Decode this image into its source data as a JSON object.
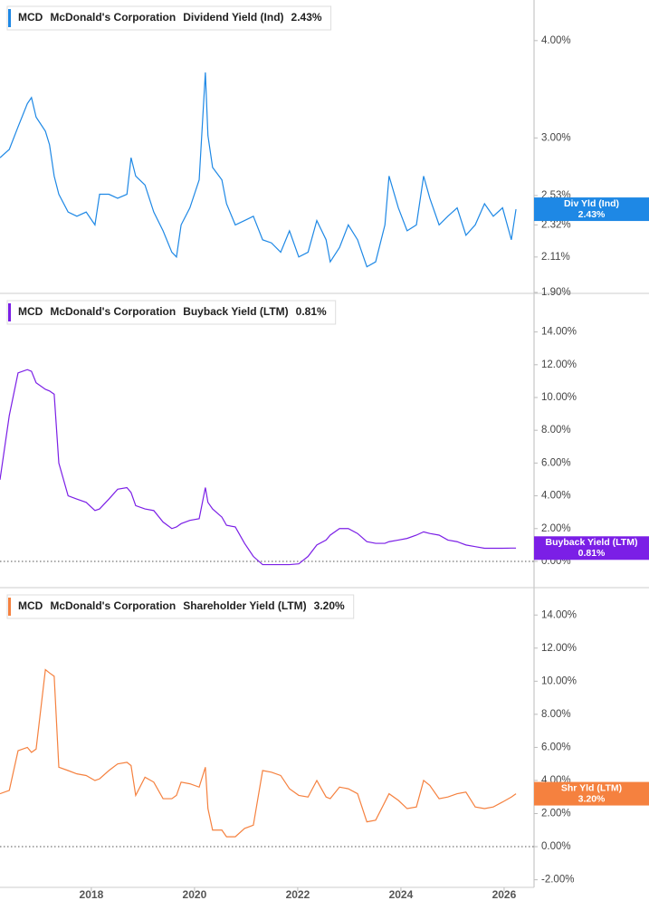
{
  "chart_data": [
    {
      "type": "line",
      "header": {
        "ticker": "MCD",
        "company": "McDonald's Corporation",
        "metric": "Dividend Yield (Ind)",
        "value_label": "2.43%"
      },
      "x": [
        2016.23,
        2016.41,
        2016.58,
        2016.76,
        2016.84,
        2016.93,
        2017.11,
        2017.19,
        2017.28,
        2017.37,
        2017.55,
        2017.72,
        2017.9,
        2018.07,
        2018.16,
        2018.34,
        2018.51,
        2018.69,
        2018.77,
        2018.86,
        2019.04,
        2019.21,
        2019.39,
        2019.56,
        2019.65,
        2019.74,
        2019.91,
        2020.09,
        2020.21,
        2020.26,
        2020.35,
        2020.53,
        2020.62,
        2020.79,
        2020.97,
        2021.14,
        2021.32,
        2021.49,
        2021.67,
        2021.84,
        2022.02,
        2022.2,
        2022.37,
        2022.55,
        2022.63,
        2022.81,
        2022.98,
        2023.16,
        2023.34,
        2023.51,
        2023.69,
        2023.77,
        2023.95,
        2024.12,
        2024.3,
        2024.44,
        2024.56,
        2024.74,
        2024.91,
        2025.09,
        2025.26,
        2025.44,
        2025.62,
        2025.79,
        2025.97,
        2026.14,
        2026.23
      ],
      "series": [
        {
          "name": "Div Yld (Ind)",
          "color": "#1e88e5",
          "values": [
            2.83,
            2.9,
            3.1,
            3.32,
            3.38,
            3.19,
            3.06,
            2.94,
            2.68,
            2.54,
            2.41,
            2.38,
            2.41,
            2.32,
            2.54,
            2.54,
            2.51,
            2.54,
            2.83,
            2.68,
            2.61,
            2.41,
            2.28,
            2.14,
            2.11,
            2.32,
            2.44,
            2.65,
            3.64,
            3.02,
            2.75,
            2.65,
            2.47,
            2.32,
            2.35,
            2.38,
            2.22,
            2.2,
            2.14,
            2.28,
            2.11,
            2.14,
            2.35,
            2.22,
            2.08,
            2.17,
            2.32,
            2.22,
            2.05,
            2.08,
            2.32,
            2.68,
            2.44,
            2.28,
            2.32,
            2.68,
            2.51,
            2.32,
            2.38,
            2.44,
            2.25,
            2.32,
            2.47,
            2.38,
            2.44,
            2.22,
            2.43
          ]
        }
      ],
      "xlim": [
        2016.23,
        2026.58
      ],
      "ylim": [
        1.9,
        4.51
      ],
      "log_scale": true,
      "yticks": [
        {
          "value": 1.9,
          "label": "1.90%"
        },
        {
          "value": 2.11,
          "label": "2.11%"
        },
        {
          "value": 2.32,
          "label": "2.32%"
        },
        {
          "value": 2.53,
          "label": "2.53%"
        },
        {
          "value": 3,
          "label": "3.00%"
        },
        {
          "value": 4,
          "label": "4.00%"
        }
      ]
    },
    {
      "type": "line",
      "header": {
        "ticker": "MCD",
        "company": "McDonald's Corporation",
        "metric": "Buyback Yield (LTM)",
        "value_label": "0.81%"
      },
      "x": [
        2016.23,
        2016.41,
        2016.58,
        2016.76,
        2016.84,
        2016.93,
        2017.11,
        2017.19,
        2017.28,
        2017.37,
        2017.55,
        2017.72,
        2017.9,
        2018.07,
        2018.16,
        2018.34,
        2018.51,
        2018.69,
        2018.77,
        2018.86,
        2019.04,
        2019.21,
        2019.39,
        2019.56,
        2019.65,
        2019.74,
        2019.91,
        2020.09,
        2020.21,
        2020.26,
        2020.35,
        2020.53,
        2020.62,
        2020.79,
        2020.97,
        2021.14,
        2021.32,
        2021.49,
        2021.67,
        2021.84,
        2022.02,
        2022.2,
        2022.37,
        2022.55,
        2022.63,
        2022.81,
        2022.98,
        2023.16,
        2023.34,
        2023.51,
        2023.69,
        2023.77,
        2023.95,
        2024.12,
        2024.3,
        2024.44,
        2024.56,
        2024.74,
        2024.91,
        2025.09,
        2025.26,
        2025.44,
        2025.62,
        2025.79,
        2025.97,
        2026.14,
        2026.23
      ],
      "series": [
        {
          "name": "Buyback Yield (LTM)",
          "color": "#7b1fe6",
          "values": [
            4.98,
            8.9,
            11.5,
            11.7,
            11.6,
            10.9,
            10.5,
            10.4,
            10.2,
            6.0,
            4.0,
            3.8,
            3.6,
            3.1,
            3.2,
            3.8,
            4.4,
            4.5,
            4.2,
            3.4,
            3.2,
            3.1,
            2.4,
            2.0,
            2.1,
            2.3,
            2.5,
            2.6,
            4.5,
            3.6,
            3.2,
            2.7,
            2.2,
            2.1,
            1.1,
            0.3,
            -0.2,
            -0.2,
            -0.2,
            -0.2,
            -0.15,
            0.3,
            1.0,
            1.3,
            1.6,
            2.0,
            2.0,
            1.7,
            1.2,
            1.1,
            1.1,
            1.2,
            1.3,
            1.4,
            1.6,
            1.8,
            1.7,
            1.6,
            1.3,
            1.2,
            1.0,
            0.9,
            0.8,
            0.8,
            0.8,
            0.81,
            0.81
          ]
        }
      ],
      "xlim": [
        2016.23,
        2026.58
      ],
      "ylim": [
        -1.55,
        16.3
      ],
      "zero_line": true,
      "yticks": [
        {
          "value": 0,
          "label": "0.00%"
        },
        {
          "value": 2,
          "label": "2.00%"
        },
        {
          "value": 4,
          "label": "4.00%"
        },
        {
          "value": 6,
          "label": "6.00%"
        },
        {
          "value": 8,
          "label": "8.00%"
        },
        {
          "value": 10,
          "label": "10.00%"
        },
        {
          "value": 12,
          "label": "12.00%"
        },
        {
          "value": 14,
          "label": "14.00%"
        }
      ]
    },
    {
      "type": "line",
      "header": {
        "ticker": "MCD",
        "company": "McDonald's Corporation",
        "metric": "Shareholder Yield (LTM)",
        "value_label": "3.20%"
      },
      "x": [
        2016.23,
        2016.41,
        2016.58,
        2016.76,
        2016.84,
        2016.93,
        2017.11,
        2017.19,
        2017.28,
        2017.37,
        2017.55,
        2017.72,
        2017.9,
        2018.07,
        2018.16,
        2018.34,
        2018.51,
        2018.69,
        2018.77,
        2018.86,
        2019.04,
        2019.21,
        2019.39,
        2019.56,
        2019.65,
        2019.74,
        2019.91,
        2020.09,
        2020.21,
        2020.26,
        2020.35,
        2020.53,
        2020.62,
        2020.79,
        2020.97,
        2021.14,
        2021.32,
        2021.49,
        2021.67,
        2021.84,
        2022.02,
        2022.2,
        2022.37,
        2022.55,
        2022.63,
        2022.81,
        2022.98,
        2023.16,
        2023.34,
        2023.51,
        2023.69,
        2023.77,
        2023.95,
        2024.12,
        2024.3,
        2024.44,
        2024.56,
        2024.74,
        2024.91,
        2025.09,
        2025.26,
        2025.44,
        2025.62,
        2025.79,
        2025.97,
        2026.14,
        2026.23
      ],
      "series": [
        {
          "name": "Shr Yld (LTM)",
          "color": "#f5813f",
          "values": [
            3.2,
            3.4,
            5.8,
            6.0,
            5.7,
            5.9,
            10.7,
            10.5,
            10.3,
            4.8,
            4.6,
            4.4,
            4.3,
            4.0,
            4.1,
            4.6,
            5.0,
            5.1,
            4.9,
            3.1,
            4.2,
            3.9,
            2.9,
            2.9,
            3.1,
            3.9,
            3.8,
            3.6,
            4.8,
            2.3,
            1.0,
            1.0,
            0.6,
            0.6,
            1.1,
            1.3,
            4.6,
            4.5,
            4.3,
            3.5,
            3.1,
            3.0,
            4.0,
            3.0,
            2.9,
            3.6,
            3.5,
            3.2,
            1.5,
            1.6,
            2.7,
            3.2,
            2.8,
            2.3,
            2.4,
            4.0,
            3.7,
            2.9,
            3.0,
            3.2,
            3.3,
            2.4,
            2.3,
            2.4,
            2.7,
            3.0,
            3.2
          ]
        }
      ],
      "xlim": [
        2016.23,
        2026.58
      ],
      "ylim": [
        -2.46,
        15.6
      ],
      "zero_line": true,
      "yticks": [
        {
          "value": -2,
          "label": "-2.00%"
        },
        {
          "value": 0,
          "label": "0.00%"
        },
        {
          "value": 2,
          "label": "2.00%"
        },
        {
          "value": 4,
          "label": "4.00%"
        },
        {
          "value": 6,
          "label": "6.00%"
        },
        {
          "value": 8,
          "label": "8.00%"
        },
        {
          "value": 10,
          "label": "10.00%"
        },
        {
          "value": 12,
          "label": "12.00%"
        },
        {
          "value": 14,
          "label": "14.00%"
        }
      ],
      "xticks": [
        2018,
        2020,
        2022,
        2024,
        2026
      ]
    }
  ]
}
